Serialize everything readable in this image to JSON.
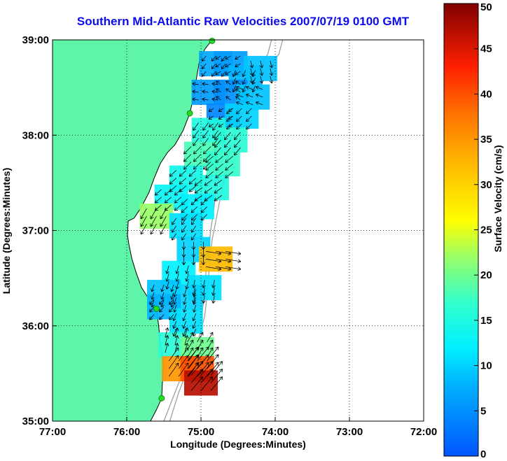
{
  "title": "Southern Mid-Atlantic Raw Velocities 2007/07/19 0100 GMT",
  "colors": {
    "title": "#0b0bf0",
    "land": "#5ff5a8",
    "coast_line": "#000000",
    "bathymetry": "#9a9a9a",
    "station": "#22dd22",
    "frame": "#000000",
    "grid": "#000000"
  },
  "map": {
    "x_label": "Longitude (Degrees:Minutes)",
    "y_label": "Latitude (Degrees:Minutes)",
    "lon_range": [
      -77,
      -72
    ],
    "lat_range": [
      35,
      39
    ],
    "lon_ticks": [
      {
        "value": -77,
        "label": "77:00"
      },
      {
        "value": -76,
        "label": "76:00"
      },
      {
        "value": -75,
        "label": "75:00"
      },
      {
        "value": -74,
        "label": "74:00"
      },
      {
        "value": -73,
        "label": "73:00"
      },
      {
        "value": -72,
        "label": "72:00"
      }
    ],
    "lat_ticks": [
      {
        "value": 35,
        "label": "35:00"
      },
      {
        "value": 36,
        "label": "36:00"
      },
      {
        "value": 37,
        "label": "37:00"
      },
      {
        "value": 38,
        "label": "38:00"
      },
      {
        "value": 39,
        "label": "39:00"
      }
    ],
    "grid": "dotted",
    "stations": [
      {
        "lon": -74.85,
        "lat": 38.99
      },
      {
        "lon": -75.15,
        "lat": 38.23
      },
      {
        "lon": -75.6,
        "lat": 36.18
      },
      {
        "lon": -75.53,
        "lat": 35.24
      }
    ],
    "coastline": [
      [
        -74.85,
        39.0
      ],
      [
        -74.95,
        38.9
      ],
      [
        -75.02,
        38.78
      ],
      [
        -75.06,
        38.6
      ],
      [
        -75.1,
        38.4
      ],
      [
        -75.15,
        38.23
      ],
      [
        -75.24,
        38.05
      ],
      [
        -75.35,
        37.9
      ],
      [
        -75.45,
        37.82
      ],
      [
        -75.55,
        37.7
      ],
      [
        -75.63,
        37.55
      ],
      [
        -75.7,
        37.4
      ],
      [
        -75.8,
        37.25
      ],
      [
        -75.9,
        37.13
      ],
      [
        -75.98,
        37.1
      ],
      [
        -75.99,
        36.95
      ],
      [
        -75.97,
        36.85
      ],
      [
        -75.93,
        36.7
      ],
      [
        -75.87,
        36.55
      ],
      [
        -75.8,
        36.4
      ],
      [
        -75.7,
        36.28
      ],
      [
        -75.6,
        36.18
      ],
      [
        -75.57,
        36.0
      ],
      [
        -75.55,
        35.85
      ],
      [
        -75.5,
        35.6
      ],
      [
        -75.52,
        35.4
      ],
      [
        -75.53,
        35.24
      ],
      [
        -75.6,
        35.12
      ],
      [
        -75.68,
        35.0
      ]
    ],
    "bathymetry_contours": [
      [
        [
          -74.05,
          39.0
        ],
        [
          -74.1,
          38.85
        ],
        [
          -74.3,
          38.6
        ],
        [
          -74.45,
          38.4
        ],
        [
          -74.6,
          38.2
        ],
        [
          -74.7,
          38.0
        ],
        [
          -74.72,
          37.8
        ],
        [
          -74.75,
          37.6
        ],
        [
          -74.8,
          37.4
        ],
        [
          -74.83,
          37.2
        ],
        [
          -74.87,
          37.0
        ],
        [
          -74.9,
          36.8
        ],
        [
          -74.93,
          36.6
        ],
        [
          -74.95,
          36.3
        ],
        [
          -75.0,
          36.1
        ],
        [
          -75.08,
          35.9
        ],
        [
          -75.15,
          35.7
        ],
        [
          -75.25,
          35.5
        ],
        [
          -75.35,
          35.3
        ],
        [
          -75.5,
          35.0
        ]
      ],
      [
        [
          -73.9,
          39.0
        ],
        [
          -73.95,
          38.85
        ],
        [
          -74.2,
          38.6
        ],
        [
          -74.35,
          38.35
        ],
        [
          -74.5,
          38.15
        ],
        [
          -74.62,
          37.9
        ],
        [
          -74.65,
          37.7
        ],
        [
          -74.7,
          37.5
        ],
        [
          -74.75,
          37.3
        ],
        [
          -74.8,
          37.1
        ],
        [
          -74.85,
          36.9
        ],
        [
          -74.88,
          36.7
        ],
        [
          -74.9,
          36.5
        ],
        [
          -74.92,
          36.3
        ],
        [
          -74.95,
          36.1
        ],
        [
          -75.02,
          35.9
        ],
        [
          -75.1,
          35.7
        ],
        [
          -75.2,
          35.5
        ],
        [
          -75.3,
          35.3
        ],
        [
          -75.42,
          35.0
        ]
      ]
    ]
  },
  "colorbar": {
    "label": "Surface Velocity (cm/s)",
    "min": 0,
    "max": 50,
    "ticks": [
      {
        "value": 0,
        "label": "0"
      },
      {
        "value": 5,
        "label": "5"
      },
      {
        "value": 10,
        "label": "10"
      },
      {
        "value": 15,
        "label": "15"
      },
      {
        "value": 20,
        "label": "20"
      },
      {
        "value": 25,
        "label": "25"
      },
      {
        "value": 30,
        "label": "30"
      },
      {
        "value": 35,
        "label": "35"
      },
      {
        "value": 40,
        "label": "40"
      },
      {
        "value": 45,
        "label": "45"
      },
      {
        "value": 50,
        "label": "50"
      }
    ],
    "stops": [
      {
        "value": 0,
        "color": "#0055ff"
      },
      {
        "value": 8,
        "color": "#00b4ff"
      },
      {
        "value": 12,
        "color": "#00f0ff"
      },
      {
        "value": 17,
        "color": "#33ffcc"
      },
      {
        "value": 22,
        "color": "#99ff66"
      },
      {
        "value": 26,
        "color": "#ffff00"
      },
      {
        "value": 33,
        "color": "#ffb000"
      },
      {
        "value": 38,
        "color": "#ff7000"
      },
      {
        "value": 43,
        "color": "#ff2000"
      },
      {
        "value": 50,
        "color": "#800000"
      }
    ]
  },
  "velocity_field": [
    {
      "lon": -74.8,
      "lat": 38.75,
      "speed": 7,
      "u": -4,
      "v": -5
    },
    {
      "lon": -74.6,
      "lat": 38.75,
      "speed": 6,
      "u": -5,
      "v": -3
    },
    {
      "lon": -74.4,
      "lat": 38.6,
      "speed": 8,
      "u": -3,
      "v": -7
    },
    {
      "lon": -74.2,
      "lat": 38.7,
      "speed": 9,
      "u": 2,
      "v": -8
    },
    {
      "lon": -74.9,
      "lat": 38.45,
      "speed": 6,
      "u": -6,
      "v": 1
    },
    {
      "lon": -74.6,
      "lat": 38.45,
      "speed": 5,
      "u": -4,
      "v": 3
    },
    {
      "lon": -74.3,
      "lat": 38.4,
      "speed": 9,
      "u": -8,
      "v": 3
    },
    {
      "lon": -74.7,
      "lat": 38.2,
      "speed": 4,
      "u": -3,
      "v": -2
    },
    {
      "lon": -74.45,
      "lat": 38.2,
      "speed": 10,
      "u": -7,
      "v": -7
    },
    {
      "lon": -74.9,
      "lat": 38.05,
      "speed": 15,
      "u": -8,
      "v": -11
    },
    {
      "lon": -74.6,
      "lat": 37.95,
      "speed": 16,
      "u": -10,
      "v": -12
    },
    {
      "lon": -75.0,
      "lat": 37.8,
      "speed": 18,
      "u": -12,
      "v": -12
    },
    {
      "lon": -74.7,
      "lat": 37.7,
      "speed": 17,
      "u": -12,
      "v": -10
    },
    {
      "lon": -75.2,
      "lat": 37.55,
      "speed": 14,
      "u": -10,
      "v": -9
    },
    {
      "lon": -74.85,
      "lat": 37.45,
      "speed": 15,
      "u": -11,
      "v": -8
    },
    {
      "lon": -75.4,
      "lat": 37.35,
      "speed": 13,
      "u": -9,
      "v": -8
    },
    {
      "lon": -75.05,
      "lat": 37.25,
      "speed": 12,
      "u": -8,
      "v": -8
    },
    {
      "lon": -75.6,
      "lat": 37.15,
      "speed": 22,
      "u": -10,
      "v": -18
    },
    {
      "lon": -75.2,
      "lat": 37.05,
      "speed": 11,
      "u": -6,
      "v": -9
    },
    {
      "lon": -75.1,
      "lat": 36.8,
      "speed": 10,
      "u": 0,
      "v": -10
    },
    {
      "lon": -74.8,
      "lat": 36.7,
      "speed": 32,
      "u": 31,
      "v": -5
    },
    {
      "lon": -75.3,
      "lat": 36.55,
      "speed": 12,
      "u": -3,
      "v": -11
    },
    {
      "lon": -74.95,
      "lat": 36.4,
      "speed": 11,
      "u": -2,
      "v": -11
    },
    {
      "lon": -75.5,
      "lat": 36.35,
      "speed": 9,
      "u": -3,
      "v": -9
    },
    {
      "lon": -75.2,
      "lat": 36.3,
      "speed": 10,
      "u": -3,
      "v": -10
    },
    {
      "lon": -75.5,
      "lat": 36.2,
      "speed": 8,
      "u": -5,
      "v": -6
    },
    {
      "lon": -75.2,
      "lat": 36.05,
      "speed": 11,
      "u": -4,
      "v": -10
    },
    {
      "lon": -75.35,
      "lat": 35.8,
      "speed": 16,
      "u": 4,
      "v": 15
    },
    {
      "lon": -75.05,
      "lat": 35.75,
      "speed": 20,
      "u": 10,
      "v": 17
    },
    {
      "lon": -75.3,
      "lat": 35.55,
      "speed": 35,
      "u": 20,
      "v": 28
    },
    {
      "lon": -75.05,
      "lat": 35.55,
      "speed": 40,
      "u": 25,
      "v": 31
    },
    {
      "lon": -75.0,
      "lat": 35.4,
      "speed": 47,
      "u": 30,
      "v": 36
    }
  ]
}
